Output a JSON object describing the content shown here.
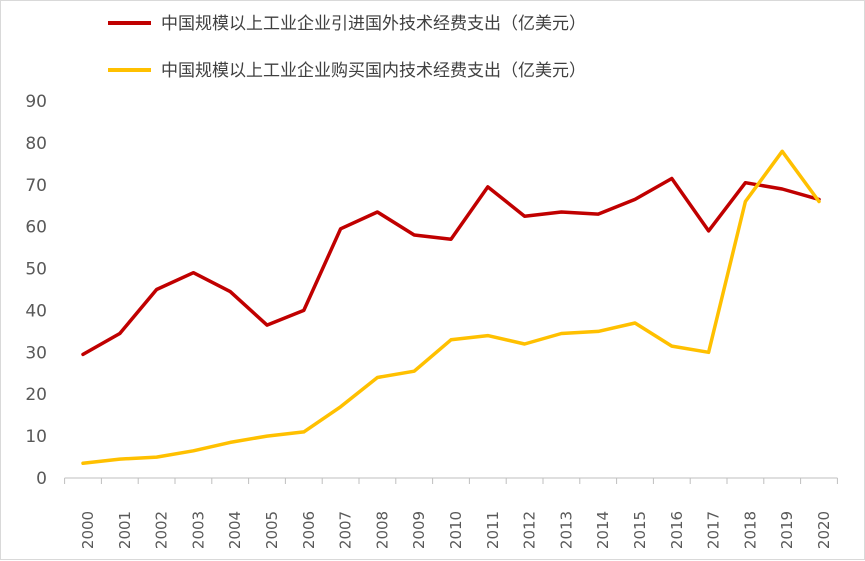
{
  "chart_data": {
    "type": "line",
    "title": "",
    "xlabel": "",
    "ylabel": "",
    "x": [
      "2000",
      "2001",
      "2002",
      "2003",
      "2004",
      "2005",
      "2006",
      "2007",
      "2008",
      "2009",
      "2010",
      "2011",
      "2012",
      "2013",
      "2014",
      "2015",
      "2016",
      "2017",
      "2018",
      "2019",
      "2020"
    ],
    "ylim": [
      0,
      90
    ],
    "yticks": [
      0,
      10,
      20,
      30,
      40,
      50,
      60,
      70,
      80,
      90
    ],
    "grid": false,
    "legend_position": "top-center",
    "series": [
      {
        "name": "中国规模以上工业企业引进国外技术经费支出（亿美元）",
        "color": "#c00000",
        "values": [
          29.5,
          34.5,
          45.0,
          49.0,
          44.5,
          36.5,
          40.0,
          59.5,
          63.5,
          58.0,
          57.0,
          69.5,
          62.5,
          63.5,
          63.0,
          66.5,
          71.5,
          59.0,
          70.5,
          69.0,
          66.5
        ]
      },
      {
        "name": "中国规模以上工业企业购买国内技术经费支出（亿美元）",
        "color": "#ffc000",
        "values": [
          3.5,
          4.5,
          5.0,
          6.5,
          8.5,
          10.0,
          11.0,
          17.0,
          24.0,
          25.5,
          33.0,
          34.0,
          32.0,
          34.5,
          35.0,
          37.0,
          31.5,
          30.0,
          66.0,
          78.0,
          66.0
        ]
      }
    ]
  }
}
